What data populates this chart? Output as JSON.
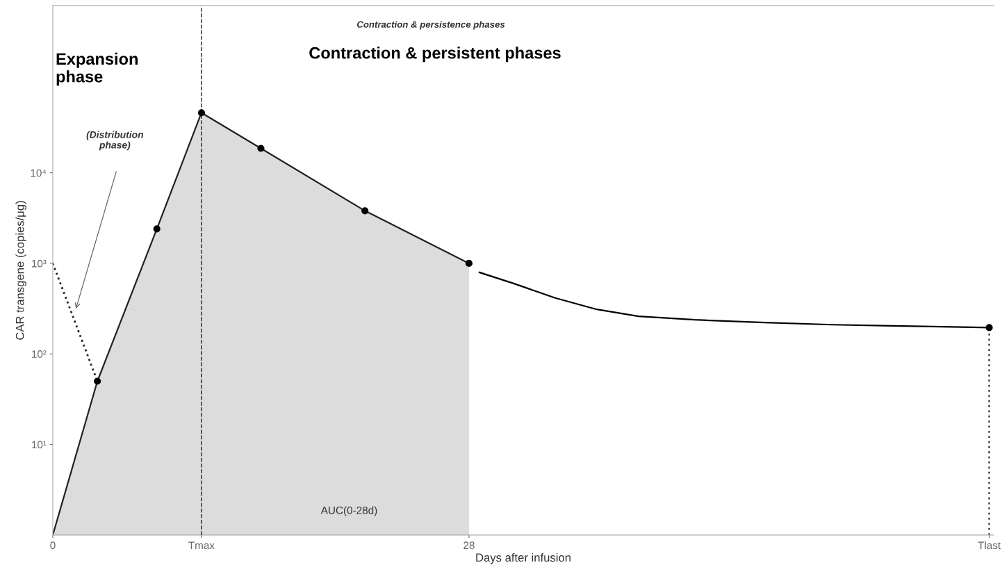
{
  "chart_data": {
    "type": "area",
    "xlabel": "Days after infusion",
    "ylabel": "CAR transgene (copies/μg)",
    "log": "y",
    "xlim": [
      0,
      63.3
    ],
    "ylim": [
      1,
      700000
    ],
    "xticks": [
      0,
      {
        "value": 10,
        "label": "Tmax"
      },
      28,
      {
        "value": 63,
        "label": "Tlast"
      }
    ],
    "yticks": [
      {
        "value": 10,
        "label": "10¹"
      },
      {
        "value": 100,
        "label": "10²"
      },
      {
        "value": 1000,
        "label": "10³"
      },
      {
        "value": 10000,
        "label": "10⁴"
      }
    ],
    "grid": false,
    "series": [
      {
        "color": "#dcdcdc",
        "x": [
          0,
          3,
          7,
          10,
          14,
          21,
          28
        ],
        "values": [
          1,
          50,
          2400,
          46000,
          18600,
          3800,
          1000
        ]
      },
      {
        "type": "scatter",
        "color": "#000000",
        "marker": "circle",
        "x": [
          3,
          7,
          10,
          14,
          21,
          28,
          63
        ],
        "values": [
          50,
          2400,
          46000,
          18600,
          3800,
          1000,
          195
        ]
      },
      {
        "type": "line",
        "color": "#000000",
        "line_style": "solid",
        "x": [
          28.7,
          31,
          33.8,
          36.6,
          39.4,
          43.2,
          47.9,
          52.5,
          57.2,
          63
        ],
        "values": [
          795,
          600,
          415,
          310,
          260,
          238,
          222,
          210,
          203,
          195
        ]
      },
      {
        "type": "line",
        "color": "#222222",
        "line_style": "dotted",
        "x": [
          0,
          3
        ],
        "values": [
          1000,
          50
        ]
      },
      {
        "type": "line",
        "color": "#555555",
        "line_style": "dotted",
        "x": [
          63,
          63
        ],
        "values": [
          1,
          195
        ]
      }
    ],
    "ref_lines": [
      {
        "axis": "x",
        "value": 10,
        "line_style": "dashed",
        "color": "#333333"
      }
    ],
    "annotations": [
      "Expansion\nphase",
      "Contraction & persistent phases",
      "Contraction & persistence phases",
      "(Distribution\nphase)",
      "AUC(0-28d)"
    ]
  }
}
